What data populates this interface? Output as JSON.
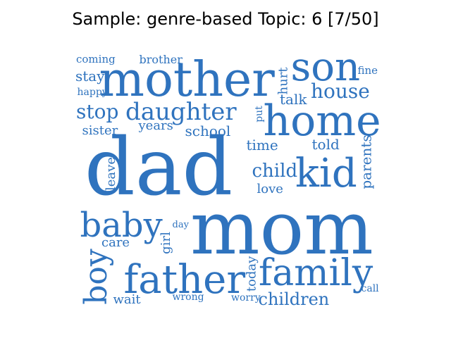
{
  "title": "Sample: genre-based Topic: 6 [7/50]",
  "colors": {
    "word": "#2f73be",
    "background": "#ffffff",
    "title": "#000000"
  },
  "words": [
    {
      "text": "dad",
      "size": 112
    },
    {
      "text": "mom",
      "size": 104
    },
    {
      "text": "mother",
      "size": 68
    },
    {
      "text": "son",
      "size": 56
    },
    {
      "text": "home",
      "size": 60
    },
    {
      "text": "kid",
      "size": 56
    },
    {
      "text": "father",
      "size": 56
    },
    {
      "text": "family",
      "size": 52
    },
    {
      "text": "baby",
      "size": 48
    },
    {
      "text": "boy",
      "size": 44
    },
    {
      "text": "daughter",
      "size": 34
    },
    {
      "text": "house",
      "size": 28
    },
    {
      "text": "stop",
      "size": 28
    },
    {
      "text": "child",
      "size": 26
    },
    {
      "text": "children",
      "size": 24
    },
    {
      "text": "school",
      "size": 20
    },
    {
      "text": "time",
      "size": 20
    },
    {
      "text": "told",
      "size": 20
    },
    {
      "text": "talk",
      "size": 20
    },
    {
      "text": "stay",
      "size": 20
    },
    {
      "text": "parents",
      "size": 20
    },
    {
      "text": "hurt",
      "size": 18
    },
    {
      "text": "sister",
      "size": 18
    },
    {
      "text": "love",
      "size": 18
    },
    {
      "text": "years",
      "size": 18
    },
    {
      "text": "care",
      "size": 18
    },
    {
      "text": "today",
      "size": 18
    },
    {
      "text": "wait",
      "size": 18
    },
    {
      "text": "girl",
      "size": 18
    },
    {
      "text": "leave",
      "size": 18
    },
    {
      "text": "brother",
      "size": 16
    },
    {
      "text": "coming",
      "size": 15
    },
    {
      "text": "fine",
      "size": 15
    },
    {
      "text": "happy",
      "size": 14
    },
    {
      "text": "put",
      "size": 14
    },
    {
      "text": "call",
      "size": 14
    },
    {
      "text": "worry",
      "size": 14
    },
    {
      "text": "wrong",
      "size": 14
    },
    {
      "text": "day",
      "size": 13
    }
  ]
}
